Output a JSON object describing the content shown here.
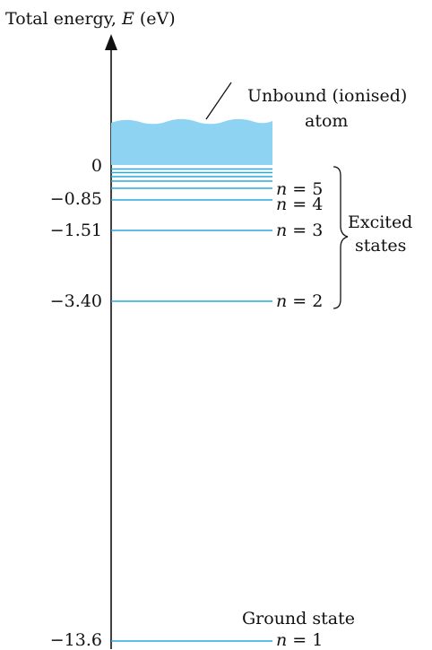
{
  "axis": {
    "title_prefix": "Total energy, ",
    "title_symbol": "E",
    "title_unit": " (eV)"
  },
  "continuum": {
    "label_line1": "Unbound (ionised)",
    "label_line2": "atom",
    "fill_color": "#8ed3f2"
  },
  "levels": [
    {
      "n": 1,
      "energy": -13.6,
      "value_label": "−13.6",
      "n_symbol": "n",
      "n_text": " = 1"
    },
    {
      "n": 2,
      "energy": -3.4,
      "value_label": "−3.40",
      "n_symbol": "n",
      "n_text": " = 2"
    },
    {
      "n": 3,
      "energy": -1.51,
      "value_label": "−1.51",
      "n_symbol": "n",
      "n_text": " = 3"
    },
    {
      "n": 4,
      "energy": -0.85,
      "value_label": "−0.85",
      "n_symbol": "n",
      "n_text": " = 4"
    },
    {
      "n": 5,
      "energy": -0.54,
      "value_label": "",
      "n_symbol": "n",
      "n_text": " = 5"
    }
  ],
  "zero_label": "0",
  "excited_label_line1": "Excited",
  "excited_label_line2": "states",
  "ground_label": "Ground state",
  "level_color": "#29a9df"
}
